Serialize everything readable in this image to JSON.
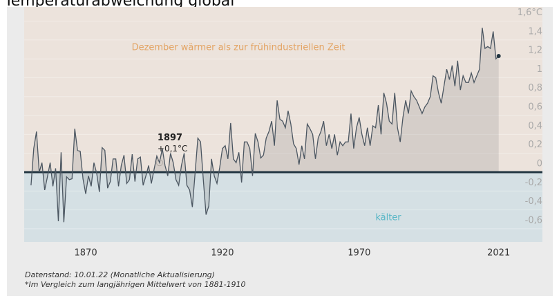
{
  "chart_data": {
    "type": "line",
    "title": "Temperaturabweichung global",
    "annotation_warm": "Dezember wärmer als zur frühindustriellen Zeit",
    "annotation_cold": "kälter",
    "highlight": {
      "x": 1897,
      "label": "+0,1°C"
    },
    "notes": [
      "Datenstand: 10.01.22 (Monatliche Aktualisierung)",
      "*Im Vergleich zum langjährigen Mittelwert von 1881-1910"
    ],
    "x": [
      1850,
      1851,
      1852,
      1853,
      1854,
      1855,
      1856,
      1857,
      1858,
      1859,
      1860,
      1861,
      1862,
      1863,
      1864,
      1865,
      1866,
      1867,
      1868,
      1869,
      1870,
      1871,
      1872,
      1873,
      1874,
      1875,
      1876,
      1877,
      1878,
      1879,
      1880,
      1881,
      1882,
      1883,
      1884,
      1885,
      1886,
      1887,
      1888,
      1889,
      1890,
      1891,
      1892,
      1893,
      1894,
      1895,
      1896,
      1897,
      1898,
      1899,
      1900,
      1901,
      1902,
      1903,
      1904,
      1905,
      1906,
      1907,
      1908,
      1909,
      1910,
      1911,
      1912,
      1913,
      1914,
      1915,
      1916,
      1917,
      1918,
      1919,
      1920,
      1921,
      1922,
      1923,
      1924,
      1925,
      1926,
      1927,
      1928,
      1929,
      1930,
      1931,
      1932,
      1933,
      1934,
      1935,
      1936,
      1937,
      1938,
      1939,
      1940,
      1941,
      1942,
      1943,
      1944,
      1945,
      1946,
      1947,
      1948,
      1949,
      1950,
      1951,
      1952,
      1953,
      1954,
      1955,
      1956,
      1957,
      1958,
      1959,
      1960,
      1961,
      1962,
      1963,
      1964,
      1965,
      1966,
      1967,
      1968,
      1969,
      1970,
      1971,
      1972,
      1973,
      1974,
      1975,
      1976,
      1977,
      1978,
      1979,
      1980,
      1981,
      1982,
      1983,
      1984,
      1985,
      1986,
      1987,
      1988,
      1989,
      1990,
      1991,
      1992,
      1993,
      1994,
      1995,
      1996,
      1997,
      1998,
      1999,
      2000,
      2001,
      2002,
      2003,
      2004,
      2005,
      2006,
      2007,
      2008,
      2009,
      2010,
      2011,
      2012,
      2013,
      2014,
      2015,
      2016,
      2017,
      2018,
      2019,
      2020,
      2021
    ],
    "series": [
      {
        "name": "Temperaturabweichung",
        "color": "#4b5661",
        "values": [
          -0.14,
          0.25,
          0.43,
          0,
          0.1,
          -0.19,
          -0.05,
          0.1,
          -0.15,
          0.04,
          -0.52,
          0.21,
          -0.53,
          -0.05,
          -0.08,
          -0.07,
          0.46,
          0.23,
          0.22,
          -0.07,
          -0.23,
          -0.04,
          -0.15,
          0.1,
          -0.01,
          -0.21,
          0.26,
          0.23,
          -0.17,
          -0.1,
          0.14,
          0.14,
          -0.15,
          0.07,
          0.18,
          -0.12,
          -0.08,
          0.19,
          -0.1,
          0.14,
          0.16,
          -0.14,
          -0.04,
          0.07,
          -0.12,
          0.03,
          0.17,
          0.1,
          0.25,
          0.07,
          -0.04,
          0.2,
          0.1,
          -0.08,
          -0.14,
          0.07,
          0.2,
          -0.14,
          -0.19,
          -0.37,
          -0.01,
          0.36,
          0.32,
          -0.08,
          -0.45,
          -0.36,
          0.14,
          -0.04,
          -0.12,
          0.05,
          0.25,
          0.28,
          0.14,
          0.52,
          0.14,
          0.1,
          0.21,
          -0.11,
          0.32,
          0.32,
          0.25,
          -0.04,
          0.41,
          0.32,
          0.15,
          0.18,
          0.36,
          0.43,
          0.54,
          0.28,
          0.76,
          0.56,
          0.54,
          0.47,
          0.65,
          0.51,
          0.3,
          0.25,
          0.08,
          0.28,
          0.14,
          0.51,
          0.46,
          0.4,
          0.14,
          0.36,
          0.43,
          0.54,
          0.28,
          0.4,
          0.25,
          0.4,
          0.18,
          0.32,
          0.28,
          0.32,
          0.32,
          0.62,
          0.25,
          0.47,
          0.58,
          0.4,
          0.28,
          0.47,
          0.28,
          0.49,
          0.47,
          0.71,
          0.4,
          0.84,
          0.73,
          0.54,
          0.51,
          0.84,
          0.47,
          0.32,
          0.58,
          0.76,
          0.62,
          0.86,
          0.8,
          0.76,
          0.69,
          0.62,
          0.69,
          0.73,
          0.8,
          1.02,
          1.0,
          0.84,
          0.73,
          0.91,
          1.09,
          0.98,
          1.13,
          0.91,
          1.18,
          0.87,
          1.02,
          0.95,
          0.95,
          1.05,
          0.95,
          1.02,
          1.09,
          1.53,
          1.31,
          1.33,
          1.31,
          1.49,
          1.2,
          1.23
        ]
      }
    ],
    "xlim": [
      1847.5,
      2037
    ],
    "xticks": [
      1870,
      1920,
      1970,
      2021
    ],
    "ylim": [
      -0.74,
      1.75
    ],
    "yticks": [
      {
        "value": 1.6,
        "label": "1,6°C"
      },
      {
        "value": 1.4,
        "label": "1,4"
      },
      {
        "value": 1.2,
        "label": "1,2"
      },
      1,
      {
        "value": 0.8,
        "label": "0,8"
      },
      {
        "value": 0.6,
        "label": "0,6"
      },
      {
        "value": 0.4,
        "label": "0,4"
      },
      {
        "value": 0.2,
        "label": "0,2"
      },
      0,
      {
        "value": -0.2,
        "label": "-0,2"
      },
      {
        "value": -0.4,
        "label": "-0,4"
      },
      {
        "value": -0.6,
        "label": "-0,6"
      }
    ],
    "grid": true,
    "warm_color": "#ece3dc",
    "cold_color": "#d5e0e4"
  }
}
